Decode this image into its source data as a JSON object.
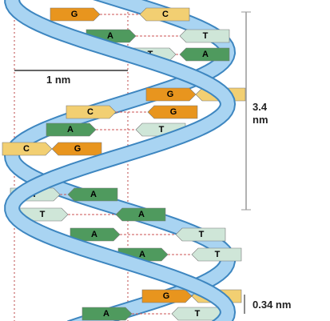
{
  "colors": {
    "G": "#e8951e",
    "C": "#f2cf72",
    "A": "#4f9a5e",
    "T": "#cfe6d8"
  },
  "pairs": [
    {
      "left": "G",
      "right": "C"
    },
    {
      "left": "A",
      "right": "T"
    },
    {
      "left": "T",
      "right": "A"
    },
    {
      "left": "G",
      "right": "C"
    },
    {
      "left": "C",
      "right": "G"
    },
    {
      "left": "A",
      "right": "T"
    },
    {
      "left": "C",
      "right": "G"
    },
    {
      "left": "T",
      "right": "A"
    },
    {
      "left": "T",
      "right": "A"
    },
    {
      "left": "A",
      "right": "T"
    },
    {
      "left": "A",
      "right": "T"
    },
    {
      "left": "G",
      "right": "C"
    },
    {
      "left": "A",
      "right": "T"
    }
  ],
  "labels": {
    "width": "1 nm",
    "pitch": "3.4 nm",
    "rise": "0.34 nm"
  }
}
